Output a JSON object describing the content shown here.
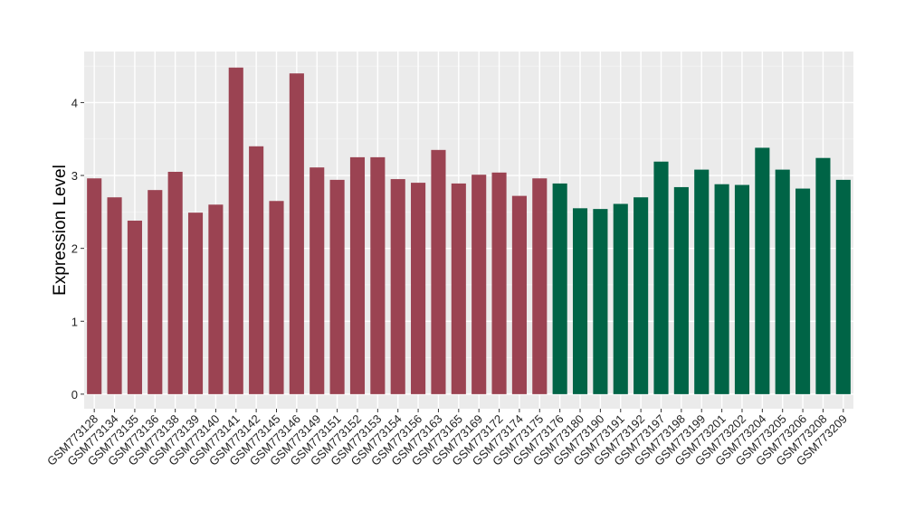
{
  "chart_data": {
    "type": "bar",
    "title": "",
    "xlabel": "",
    "ylabel": "Expression Level",
    "ylim": [
      -0.2,
      4.7
    ],
    "yticks": [
      0,
      1,
      2,
      3,
      4
    ],
    "grid": true,
    "legend": "none",
    "group_colors": [
      "#9b4352",
      "#006446"
    ],
    "panel_background": "#ebebeb",
    "categories": [
      "GSM773128",
      "GSM773134",
      "GSM773135",
      "GSM773136",
      "GSM773138",
      "GSM773139",
      "GSM773140",
      "GSM773141",
      "GSM773142",
      "GSM773145",
      "GSM773146",
      "GSM773149",
      "GSM773151",
      "GSM773152",
      "GSM773153",
      "GSM773154",
      "GSM773156",
      "GSM773163",
      "GSM773165",
      "GSM773169",
      "GSM773172",
      "GSM773174",
      "GSM773175",
      "GSM773176",
      "GSM773180",
      "GSM773190",
      "GSM773191",
      "GSM773192",
      "GSM773197",
      "GSM773198",
      "GSM773199",
      "GSM773201",
      "GSM773202",
      "GSM773204",
      "GSM773205",
      "GSM773206",
      "GSM773208",
      "GSM773209"
    ],
    "values": [
      2.96,
      2.7,
      2.38,
      2.8,
      3.05,
      2.49,
      2.6,
      4.48,
      3.4,
      2.65,
      4.4,
      3.11,
      2.94,
      3.25,
      3.25,
      2.95,
      2.9,
      3.35,
      2.89,
      3.01,
      3.04,
      2.72,
      2.96,
      2.89,
      2.55,
      2.54,
      2.61,
      2.7,
      3.19,
      2.84,
      3.08,
      2.88,
      2.87,
      3.38,
      3.08,
      2.82,
      3.24,
      2.94
    ],
    "groups": [
      0,
      0,
      0,
      0,
      0,
      0,
      0,
      0,
      0,
      0,
      0,
      0,
      0,
      0,
      0,
      0,
      0,
      0,
      0,
      0,
      0,
      0,
      0,
      1,
      1,
      1,
      1,
      1,
      1,
      1,
      1,
      1,
      1,
      1,
      1,
      1,
      1,
      1
    ]
  }
}
